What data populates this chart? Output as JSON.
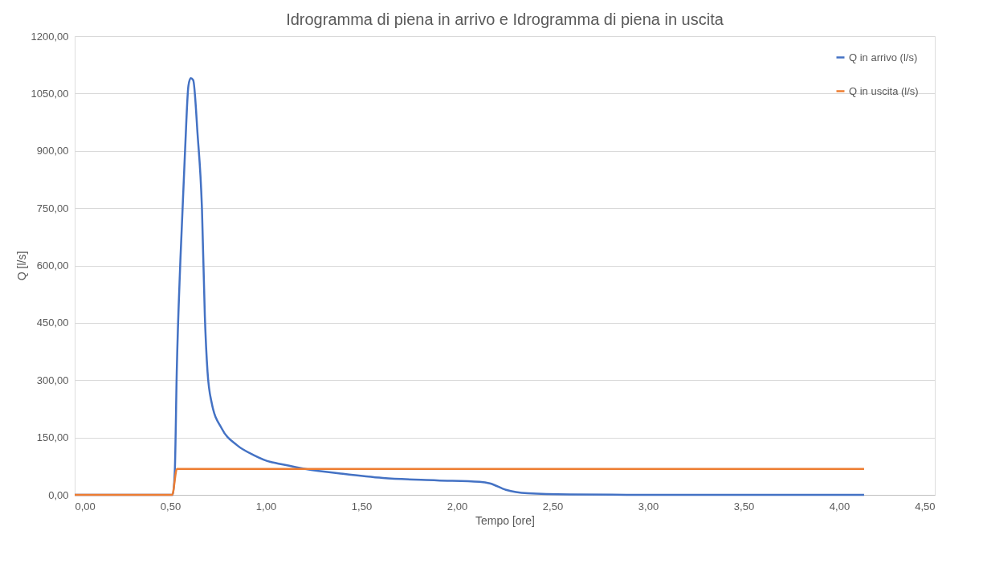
{
  "chart_data": {
    "type": "line",
    "title": "Idrogramma di piena in arrivo e Idrogramma di piena in uscita",
    "xlabel": "Tempo [ore]",
    "ylabel": "Q [l/s]",
    "series": [
      {
        "name": "Q in arrivo (l/s)",
        "color": "#4472c4",
        "x": [
          0,
          0.5,
          0.513,
          0.524,
          0.534,
          0.553,
          0.578,
          0.595,
          0.607,
          0.62,
          0.643,
          0.666,
          0.681,
          0.695,
          0.717,
          0.769,
          0.849,
          0.937,
          1.025,
          1.054,
          1.206,
          1.403,
          1.613,
          1.895,
          2.118,
          2.172,
          2.256,
          2.37,
          2.59,
          3.0,
          4.13
        ],
        "values": [
          0,
          0,
          0,
          65,
          322,
          614,
          907,
          1070,
          1090,
          1085,
          943,
          746,
          467,
          322,
          240,
          174,
          130,
          104,
          86,
          83,
          68,
          55,
          44,
          38,
          34,
          30,
          13,
          4,
          1,
          0,
          0
        ]
      },
      {
        "name": "Q in uscita (l/s)",
        "color": "#ed7d31",
        "x": [
          0,
          0.51,
          0.535,
          4.13
        ],
        "values": [
          0,
          0,
          68,
          68
        ]
      }
    ],
    "xlim": [
      0,
      4.5
    ],
    "ylim": [
      0,
      1200
    ],
    "xticks": [
      {
        "value": 0,
        "label": "0,00"
      },
      {
        "value": 0.5,
        "label": "0,50"
      },
      {
        "value": 1,
        "label": "1,00"
      },
      {
        "value": 1.5,
        "label": "1,50"
      },
      {
        "value": 2,
        "label": "2,00"
      },
      {
        "value": 2.5,
        "label": "2,50"
      },
      {
        "value": 3,
        "label": "3,00"
      },
      {
        "value": 3.5,
        "label": "3,50"
      },
      {
        "value": 4,
        "label": "4,00"
      },
      {
        "value": 4.5,
        "label": "4,50"
      }
    ],
    "yticks": [
      {
        "value": 0,
        "label": "0,00"
      },
      {
        "value": 150,
        "label": "150,00"
      },
      {
        "value": 300,
        "label": "300,00"
      },
      {
        "value": 450,
        "label": "450,00"
      },
      {
        "value": 600,
        "label": "600,00"
      },
      {
        "value": 750,
        "label": "750,00"
      },
      {
        "value": 900,
        "label": "900,00"
      },
      {
        "value": 1050,
        "label": "1050,00"
      },
      {
        "value": 1200,
        "label": "1200,00"
      }
    ],
    "grid": "y",
    "legend": "top right",
    "marker": "none",
    "line_style": "solid"
  }
}
